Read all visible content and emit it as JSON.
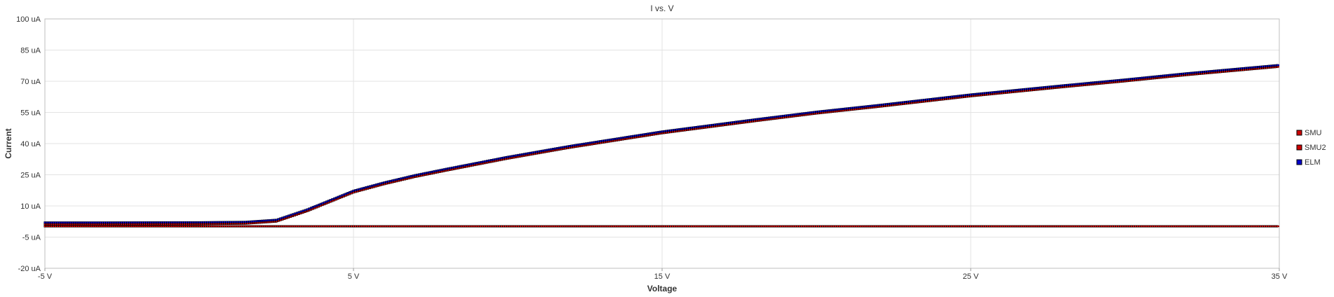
{
  "chart_data": {
    "type": "line",
    "title": "I vs. V",
    "xlabel": "Voltage",
    "ylabel": "Current",
    "xlim": [
      -5,
      35
    ],
    "ylim": [
      -20,
      100
    ],
    "x_ticks": [
      -5,
      5,
      15,
      25,
      35
    ],
    "x_tick_labels": [
      "-5 V",
      "5 V",
      "15 V",
      "25 V",
      "35 V"
    ],
    "y_ticks": [
      100,
      85,
      70,
      55,
      40,
      25,
      10,
      -5,
      -20
    ],
    "y_tick_labels": [
      "100 uA",
      "85 uA",
      "70 uA",
      "55 uA",
      "40 uA",
      "25 uA",
      "10 uA",
      "-5 uA",
      "-20 uA"
    ],
    "grid": true,
    "legend_position": "right",
    "series": [
      {
        "name": "SMU",
        "color": "#cc0000",
        "marker_border": "#000000",
        "x": [
          -5,
          0,
          5,
          10,
          15,
          20,
          25,
          30,
          35
        ],
        "y": [
          0.2,
          0.2,
          0.2,
          0.2,
          0.2,
          0.2,
          0.2,
          0.2,
          0.2
        ]
      },
      {
        "name": "SMU2",
        "color": "#cc0000",
        "marker_border": "#000000",
        "x": [
          -5,
          -3,
          0,
          1.5,
          2.5,
          3.5,
          4.5,
          5,
          6,
          7,
          8,
          10,
          12,
          15,
          18,
          20,
          22,
          25,
          28,
          30,
          32,
          35
        ],
        "y": [
          1.2,
          1.2,
          1.3,
          1.5,
          2.5,
          7.5,
          13.5,
          16.5,
          20.5,
          24.0,
          27.0,
          32.8,
          38.0,
          45.0,
          50.8,
          54.5,
          57.7,
          62.8,
          67.2,
          70.0,
          73.0,
          77.0
        ]
      },
      {
        "name": "ELM",
        "color": "#0000cc",
        "marker_border": "#000000",
        "x": [
          -5,
          -3,
          0,
          1.5,
          2.5,
          3.5,
          4.5,
          5,
          6,
          7,
          8,
          10,
          12,
          15,
          18,
          20,
          22,
          25,
          28,
          30,
          32,
          35
        ],
        "y": [
          2.0,
          2.0,
          2.1,
          2.3,
          3.3,
          8.3,
          14.3,
          17.3,
          21.3,
          24.8,
          27.8,
          33.6,
          38.8,
          45.8,
          51.6,
          55.3,
          58.5,
          63.6,
          68.0,
          70.8,
          73.8,
          77.8
        ]
      }
    ]
  }
}
